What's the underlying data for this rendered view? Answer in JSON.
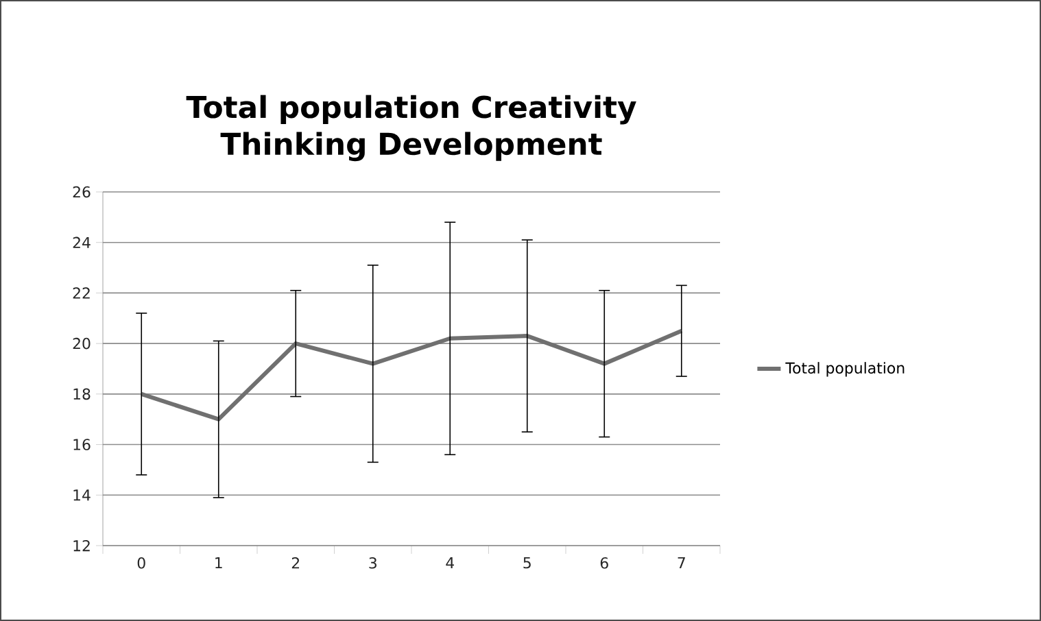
{
  "chart_data": {
    "type": "line",
    "title": "Total population Creativity Thinking Development",
    "categories": [
      "0",
      "1",
      "2",
      "3",
      "4",
      "5",
      "6",
      "7"
    ],
    "series": [
      {
        "name": "Total population",
        "color": "#707070",
        "values": [
          18.0,
          17.0,
          20.0,
          19.2,
          20.2,
          20.3,
          19.2,
          20.5
        ],
        "errors": [
          3.2,
          3.1,
          2.1,
          3.9,
          4.6,
          3.8,
          2.9,
          1.8
        ]
      }
    ],
    "ylim": [
      12,
      26
    ],
    "yticks": [
      12,
      14,
      16,
      18,
      20,
      22,
      24,
      26
    ],
    "grid": "y",
    "legend": "right",
    "marker": "none",
    "line_style": "solid"
  }
}
